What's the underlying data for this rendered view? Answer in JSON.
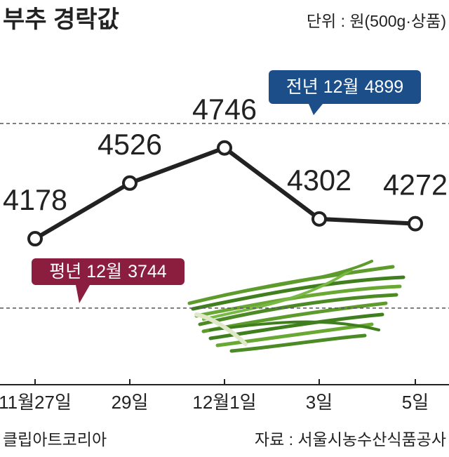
{
  "chart_data": {
    "type": "line",
    "title": "부추 경락값",
    "subtitle": "단위 : 원(500g·상품)",
    "source": "자료 : 서울시농수산식품공사",
    "credit": "클립아트코리아",
    "categories": [
      "11월27일",
      "29일",
      "12월1일",
      "3일",
      "5일"
    ],
    "values": [
      4178,
      4526,
      4746,
      4302,
      4272
    ],
    "color": "#222222",
    "ylim": [
      3300,
      5320
    ],
    "reference_lines": [
      {
        "name": "전년 12월",
        "value": 4899,
        "color": "#1c4f8a"
      },
      {
        "name": "평년 12월",
        "value": 3744,
        "color": "#8b1e3f"
      }
    ]
  }
}
